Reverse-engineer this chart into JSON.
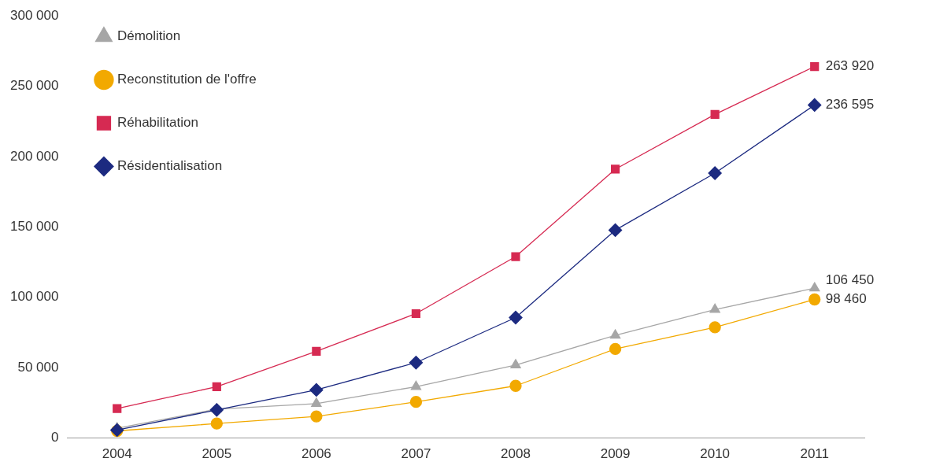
{
  "chart_data": {
    "type": "line",
    "categories": [
      "2004",
      "2005",
      "2006",
      "2007",
      "2008",
      "2009",
      "2010",
      "2011"
    ],
    "series": [
      {
        "name": "Démolition",
        "color": "#a6a6a6",
        "marker": "triangle",
        "values": [
          7000,
          20500,
          24500,
          36500,
          51900,
          73000,
          91300,
          106450
        ],
        "value_labels": [
          null,
          null,
          null,
          null,
          null,
          null,
          null,
          "106 450"
        ]
      },
      {
        "name": "Reconstitution de l'offre",
        "color": "#f2a900",
        "marker": "circle",
        "values": [
          5100,
          10300,
          15400,
          25700,
          37100,
          63300,
          78700,
          98460
        ],
        "value_labels": [
          null,
          null,
          null,
          null,
          null,
          null,
          null,
          "98 460"
        ]
      },
      {
        "name": "Réhabilitation",
        "color": "#d62a52",
        "marker": "square",
        "values": [
          21000,
          36500,
          61600,
          88400,
          128900,
          191000,
          229900,
          263920
        ],
        "value_labels": [
          null,
          null,
          null,
          null,
          null,
          null,
          null,
          "263 920"
        ]
      },
      {
        "name": "Résidentialisation",
        "color": "#1c2a80",
        "marker": "diamond",
        "values": [
          5700,
          20000,
          34200,
          53600,
          85600,
          147700,
          188200,
          236595
        ],
        "value_labels": [
          null,
          null,
          null,
          null,
          null,
          null,
          null,
          "236 595"
        ]
      }
    ],
    "ylim": [
      0,
      300000
    ],
    "yticks": [
      {
        "value": 0,
        "label": "0"
      },
      {
        "value": 50000,
        "label": "50 000"
      },
      {
        "value": 100000,
        "label": "100 000"
      },
      {
        "value": 150000,
        "label": "150 000"
      },
      {
        "value": 200000,
        "label": "200 000"
      },
      {
        "value": 250000,
        "label": "250 000"
      },
      {
        "value": 300000,
        "label": "300 000"
      }
    ],
    "grid": false,
    "legend": "top left",
    "line_style": "solid"
  }
}
